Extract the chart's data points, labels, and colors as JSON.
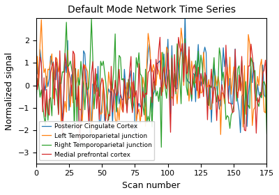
{
  "title": "Default Mode Network Time Series",
  "xlabel": "Scan number",
  "ylabel": "Normalized signal",
  "xlim": [
    0,
    175
  ],
  "ylim": [
    -3.5,
    3.0
  ],
  "yticks": [
    -3,
    -2,
    -1,
    0,
    1,
    2
  ],
  "xticks": [
    0,
    25,
    50,
    75,
    100,
    125,
    150,
    175
  ],
  "legend_labels": [
    "Posterior Cingulate Cortex",
    "Left Temporoparietal junction",
    "Right Temporoparietal junction",
    "Medial prefrontal cortex"
  ],
  "line_colors": [
    "#1f77b4",
    "#ff7f0e",
    "#2ca02c",
    "#d62728"
  ],
  "linewidth": 0.9,
  "figsize": [
    4.0,
    2.8
  ],
  "dpi": 100,
  "legend_fontsize": 6.5,
  "title_fontsize": 10,
  "label_fontsize": 9
}
